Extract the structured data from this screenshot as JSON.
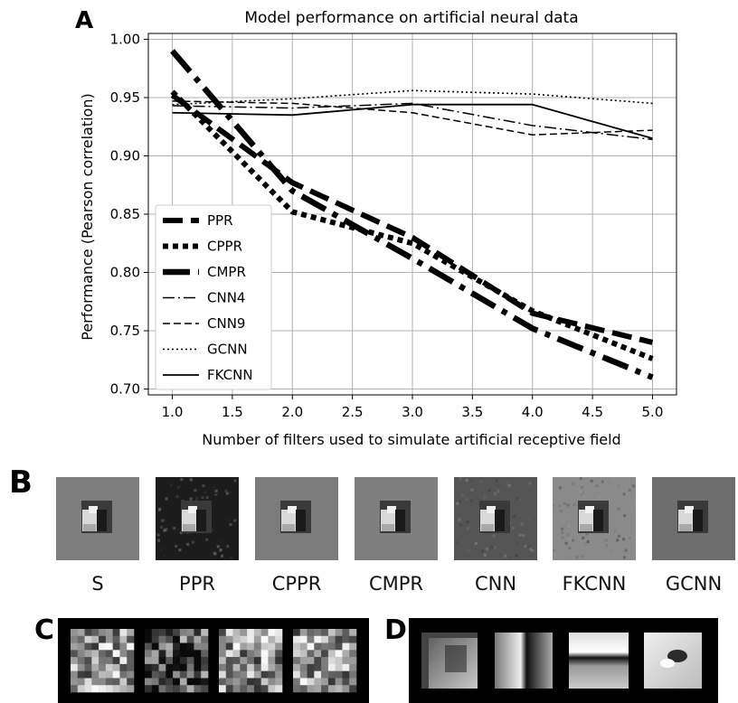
{
  "panels": {
    "a": "A",
    "b": "B",
    "c": "C",
    "d": "D"
  },
  "chart_data": {
    "type": "line",
    "title": "Model performance on artificial neural data",
    "xlabel": "Number of filters used to simulate artificial receptive field",
    "ylabel": "Performance (Pearson correlation)",
    "x": [
      1,
      2,
      3,
      4,
      5
    ],
    "xlim": [
      0.8,
      5.2
    ],
    "ylim": [
      0.695,
      1.005
    ],
    "xticks": [
      "1.0",
      "1.5",
      "2.0",
      "2.5",
      "3.0",
      "3.5",
      "4.0",
      "4.5",
      "5.0"
    ],
    "yticks": [
      "0.70",
      "0.75",
      "0.80",
      "0.85",
      "0.90",
      "0.95",
      "1.00"
    ],
    "grid": true,
    "legend_position": "lower-left",
    "series": [
      {
        "name": "PPR",
        "values": [
          0.952,
          0.877,
          0.83,
          0.765,
          0.74
        ]
      },
      {
        "name": "CPPR",
        "values": [
          0.955,
          0.852,
          0.825,
          0.767,
          0.726
        ]
      },
      {
        "name": "CMPR",
        "values": [
          0.99,
          0.87,
          0.812,
          0.752,
          0.71
        ]
      },
      {
        "name": "CNN4",
        "values": [
          0.943,
          0.941,
          0.945,
          0.926,
          0.914
        ]
      },
      {
        "name": "CNN9",
        "values": [
          0.947,
          0.945,
          0.937,
          0.918,
          0.922
        ]
      },
      {
        "name": "GCNN",
        "values": [
          0.944,
          0.949,
          0.956,
          0.953,
          0.945
        ]
      },
      {
        "name": "FKCNN",
        "values": [
          0.937,
          0.935,
          0.944,
          0.944,
          0.915
        ]
      }
    ]
  },
  "panel_b": {
    "items": [
      {
        "label": "S",
        "bg": "#7e7e7e"
      },
      {
        "label": "PPR",
        "bg": "#1c1c1c"
      },
      {
        "label": "CPPR",
        "bg": "#7b7b7b"
      },
      {
        "label": "CMPR",
        "bg": "#7f7f7f"
      },
      {
        "label": "CNN",
        "bg": "#555555"
      },
      {
        "label": "FKCNN",
        "bg": "#8a8a8a"
      },
      {
        "label": "GCNN",
        "bg": "#6e6e6e"
      }
    ]
  }
}
